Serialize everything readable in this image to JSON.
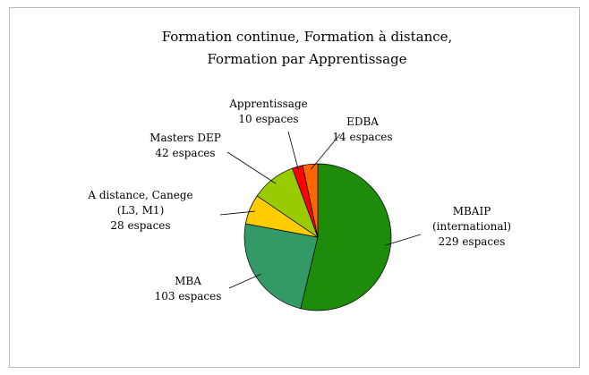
{
  "chart_data": {
    "type": "pie",
    "title": [
      "Formation continue, Formation à distance,",
      "Formation par Apprentissage"
    ],
    "categories": [
      [
        "MBAIP",
        "(international)"
      ],
      [
        "MBA"
      ],
      [
        "A distance, Canege",
        "(L3, M1)"
      ],
      [
        "Masters DEP"
      ],
      [
        "Apprentissage"
      ],
      [
        "EDBA"
      ]
    ],
    "values": [
      229,
      103,
      28,
      42,
      10,
      14
    ],
    "value_labels": [
      "229 espaces",
      "103 espaces",
      "28 espaces",
      "42 espaces",
      "10 espaces",
      "14 espaces"
    ],
    "colors": [
      "#1e8c0a",
      "#339966",
      "#ffcc00",
      "#99cc00",
      "#ff0000",
      "#ff6600"
    ]
  }
}
